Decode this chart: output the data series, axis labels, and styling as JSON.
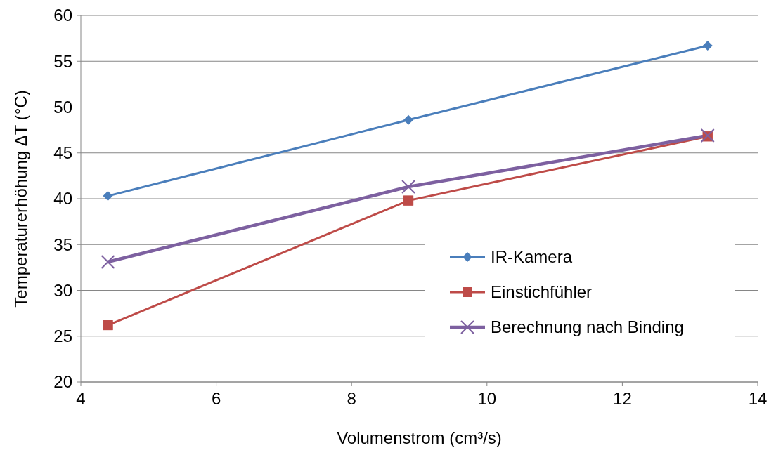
{
  "chart_data": {
    "type": "line",
    "xlabel": "Volumenstrom (cm³/s)",
    "ylabel": "Temperaturerhöhung ΔT (°C)",
    "x": [
      4.4,
      8.84,
      13.26
    ],
    "series": [
      {
        "name": "IR-Kamera",
        "color": "#4a7ebb",
        "marker": "diamond",
        "values": [
          40.3,
          48.6,
          56.7
        ]
      },
      {
        "name": "Einstichfühler",
        "color": "#be4b48",
        "marker": "square",
        "values": [
          26.2,
          39.8,
          46.8
        ]
      },
      {
        "name": "Berechnung nach Binding",
        "color": "#7d60a0",
        "marker": "cross",
        "values": [
          33.1,
          41.3,
          46.9
        ]
      }
    ],
    "xlim": [
      4,
      14
    ],
    "xticks": [
      4,
      6,
      8,
      10,
      12,
      14
    ],
    "ylim": [
      20,
      60
    ],
    "yticks": [
      20,
      25,
      30,
      35,
      40,
      45,
      50,
      55,
      60
    ],
    "grid": "y",
    "legend": "right"
  }
}
